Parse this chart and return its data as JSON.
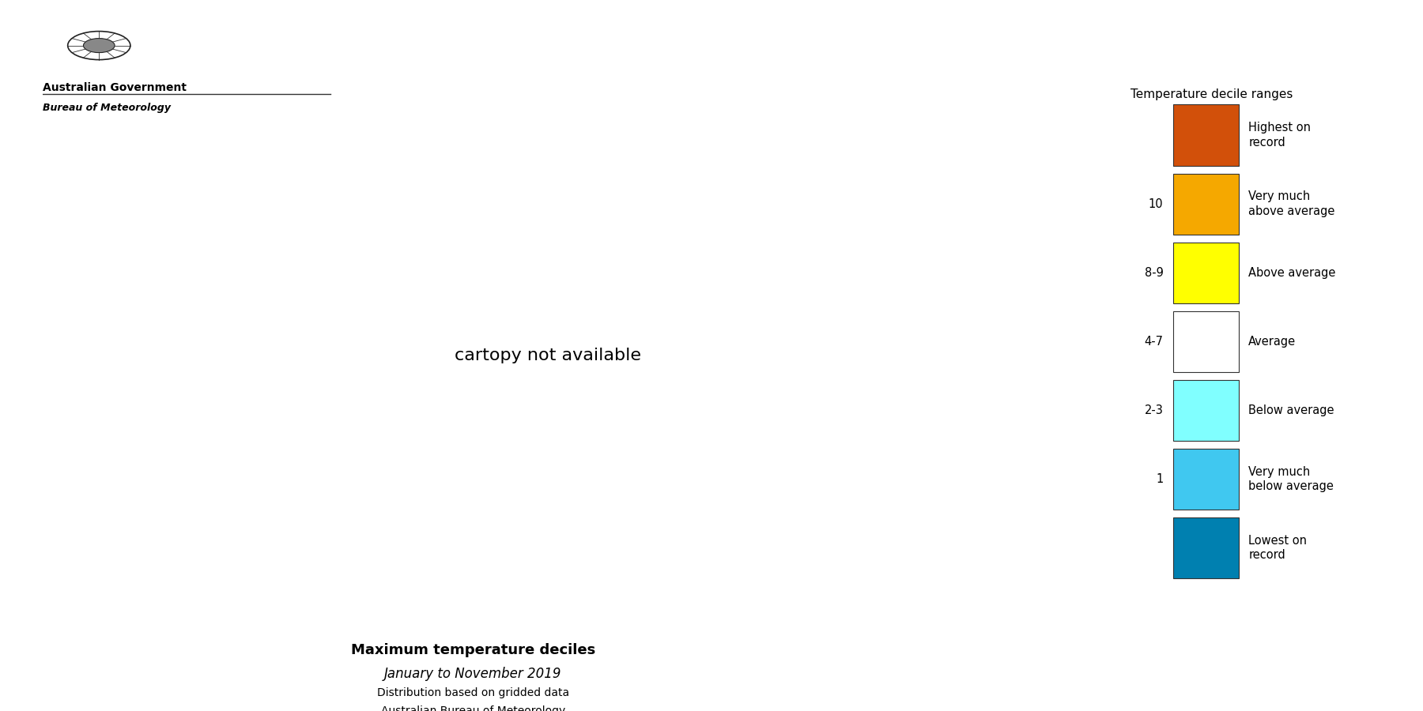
{
  "title": "Maximum temperature deciles",
  "subtitle": "January to November 2019",
  "subtitle2": "Distribution based on gridded data",
  "subtitle3": "Australian Bureau of Meteorology",
  "legend_title": "Temperature decile ranges",
  "legend_items": [
    {
      "label": "Highest on\nrecord",
      "color": "#D2500A",
      "tick": ""
    },
    {
      "label": "Very much\nabove average",
      "color": "#F5A800",
      "tick": "10"
    },
    {
      "label": "Above average",
      "color": "#FFFF00",
      "tick": "8-9"
    },
    {
      "label": "Average",
      "color": "#FFFFFF",
      "tick": "4-7"
    },
    {
      "label": "Below average",
      "color": "#80FFFF",
      "tick": "2-3"
    },
    {
      "label": "Very much\nbelow average",
      "color": "#40C8F0",
      "tick": "1"
    },
    {
      "label": "Lowest on\nrecord",
      "color": "#0080B0",
      "tick": ""
    }
  ],
  "background_color": "#FFFFFF",
  "logo_text_line1": "Australian Government",
  "logo_text_line2": "Bureau of Meteorology",
  "figsize": [
    18.0,
    9.0
  ],
  "dpi": 100
}
